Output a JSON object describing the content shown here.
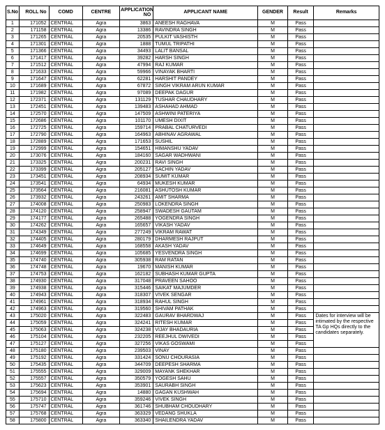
{
  "headers": {
    "sno": "S.No",
    "roll": "ROLL No",
    "comd": "COMD",
    "centre": "CENTRE",
    "app": "APPLICATION NO",
    "name": "APPLICANT NAME",
    "gender": "GENDER",
    "result": "Result",
    "remarks": "Remarks"
  },
  "remark_text": "Dates for interview will be intimated by the respective TA Gp HQs directly to the candidates separately.",
  "rows": [
    {
      "sno": 1,
      "roll": 171052,
      "comd": "CENTRAL",
      "centre": "Agra",
      "app": 3863,
      "name": "ANEESH RAGHAVA",
      "g": "M",
      "r": "Pass"
    },
    {
      "sno": 2,
      "roll": 171158,
      "comd": "CENTRAL",
      "centre": "Agra",
      "app": 13386,
      "name": "RAVINDRA SINGH",
      "g": "M",
      "r": "Pass"
    },
    {
      "sno": 3,
      "roll": 171265,
      "comd": "CENTRAL",
      "centre": "Agra",
      "app": 20535,
      "name": "PULKIT VASHISTH",
      "g": "M",
      "r": "Pass"
    },
    {
      "sno": 4,
      "roll": 171301,
      "comd": "CENTRAL",
      "centre": "Agra",
      "app": 1888,
      "name": "TUMUL TRIPATHI",
      "g": "M",
      "r": "Pass"
    },
    {
      "sno": 5,
      "roll": 171366,
      "comd": "CENTRAL",
      "centre": "Agra",
      "app": 34493,
      "name": "LALIT BANSAL",
      "g": "M",
      "r": "Pass"
    },
    {
      "sno": 6,
      "roll": 171417,
      "comd": "CENTRAL",
      "centre": "Agra",
      "app": 39282,
      "name": "HARSH SINGH",
      "g": "M",
      "r": "Pass"
    },
    {
      "sno": 7,
      "roll": 171512,
      "comd": "CENTRAL",
      "centre": "Agra",
      "app": 47994,
      "name": "RAJ KUMAR",
      "g": "M",
      "r": "Pass"
    },
    {
      "sno": 8,
      "roll": 171633,
      "comd": "CENTRAL",
      "centre": "Agra",
      "app": 59966,
      "name": "VINAYAK BHARTI",
      "g": "M",
      "r": "Pass"
    },
    {
      "sno": 9,
      "roll": 171647,
      "comd": "CENTRAL",
      "centre": "Agra",
      "app": 62281,
      "name": "HARSHIT PANDEY",
      "g": "M",
      "r": "Pass"
    },
    {
      "sno": 10,
      "roll": 171689,
      "comd": "CENTRAL",
      "centre": "Agra",
      "app": 67872,
      "name": "SINGH VIKRAM ARUN KUMAR",
      "g": "M",
      "r": "Pass"
    },
    {
      "sno": 11,
      "roll": 171982,
      "comd": "CENTRAL",
      "centre": "Agra",
      "app": 97089,
      "name": "DEEPAK DAGUR",
      "g": "M",
      "r": "Pass"
    },
    {
      "sno": 12,
      "roll": 172371,
      "comd": "CENTRAL",
      "centre": "Agra",
      "app": 131129,
      "name": "TUSHAR CHAUDHARY",
      "g": "M",
      "r": "Pass"
    },
    {
      "sno": 13,
      "roll": 172451,
      "comd": "CENTRAL",
      "centre": "Agra",
      "app": 139483,
      "name": "ASHAHAD AHMAD",
      "g": "M",
      "r": "Pass"
    },
    {
      "sno": 14,
      "roll": 172570,
      "comd": "CENTRAL",
      "centre": "Agra",
      "app": 147509,
      "name": "ASHWINI PATERIYA",
      "g": "M",
      "r": "Pass"
    },
    {
      "sno": 15,
      "roll": 172686,
      "comd": "CENTRAL",
      "centre": "Agra",
      "app": 101170,
      "name": "UMESH DIXIT",
      "g": "M",
      "r": "Pass"
    },
    {
      "sno": 16,
      "roll": 172725,
      "comd": "CENTRAL",
      "centre": "Agra",
      "app": 159714,
      "name": "PRABAL CHATURVEDI",
      "g": "M",
      "r": "Pass"
    },
    {
      "sno": 17,
      "roll": 172790,
      "comd": "CENTRAL",
      "centre": "Agra",
      "app": 164963,
      "name": "ABHINAV AGRAWAL",
      "g": "M",
      "r": "Pass"
    },
    {
      "sno": 18,
      "roll": 172889,
      "comd": "CENTRAL",
      "centre": "Agra",
      "app": 171653,
      "name": "SUSHIL",
      "g": "M",
      "r": "Pass"
    },
    {
      "sno": 19,
      "roll": 172999,
      "comd": "CENTRAL",
      "centre": "Agra",
      "app": 154651,
      "name": "HIMANSHU YADAV",
      "g": "M",
      "r": "Pass"
    },
    {
      "sno": 20,
      "roll": 173076,
      "comd": "CENTRAL",
      "centre": "Agra",
      "app": 184160,
      "name": "SAGAR WADHWANI",
      "g": "M",
      "r": "Pass"
    },
    {
      "sno": 21,
      "roll": 173325,
      "comd": "CENTRAL",
      "centre": "Agra",
      "app": 200231,
      "name": "RAVI SINGH",
      "g": "M",
      "r": "Pass"
    },
    {
      "sno": 22,
      "roll": 173399,
      "comd": "CENTRAL",
      "centre": "Agra",
      "app": 205127,
      "name": "SACHIN YADAV",
      "g": "M",
      "r": "Pass"
    },
    {
      "sno": 23,
      "roll": 173451,
      "comd": "CENTRAL",
      "centre": "Agra",
      "app": 208934,
      "name": "SUMIT KUMAR",
      "g": "M",
      "r": "Pass"
    },
    {
      "sno": 24,
      "roll": 173541,
      "comd": "CENTRAL",
      "centre": "Agra",
      "app": 64934,
      "name": "MUKESH KUMAR",
      "g": "M",
      "r": "Pass"
    },
    {
      "sno": 25,
      "roll": 173564,
      "comd": "CENTRAL",
      "centre": "Agra",
      "app": 216081,
      "name": "ASHUTOSH KUMAR",
      "g": "M",
      "r": "Pass"
    },
    {
      "sno": 26,
      "roll": 173932,
      "comd": "CENTRAL",
      "centre": "Agra",
      "app": 243261,
      "name": "AMIT SHARMA",
      "g": "M",
      "r": "Pass"
    },
    {
      "sno": 27,
      "roll": 174008,
      "comd": "CENTRAL",
      "centre": "Agra",
      "app": 250983,
      "name": "LOKENDRA SINGH",
      "g": "M",
      "r": "Pass"
    },
    {
      "sno": 28,
      "roll": 174120,
      "comd": "CENTRAL",
      "centre": "Agra",
      "app": 258947,
      "name": "SWADESH GAUTAM",
      "g": "M",
      "r": "Pass"
    },
    {
      "sno": 29,
      "roll": 174177,
      "comd": "CENTRAL",
      "centre": "Agra",
      "app": 265488,
      "name": "YOGENDRA SINGH",
      "g": "M",
      "r": "Pass"
    },
    {
      "sno": 30,
      "roll": 174262,
      "comd": "CENTRAL",
      "centre": "Agra",
      "app": 165657,
      "name": "VIKASH YADAV",
      "g": "M",
      "r": "Pass"
    },
    {
      "sno": 31,
      "roll": 174349,
      "comd": "CENTRAL",
      "centre": "Agra",
      "app": 277249,
      "name": "VIKRAM RAWAT",
      "g": "M",
      "r": "Pass"
    },
    {
      "sno": 32,
      "roll": 174405,
      "comd": "CENTRAL",
      "centre": "Agra",
      "app": 280179,
      "name": "DHARMESH RAJPUT",
      "g": "M",
      "r": "Pass"
    },
    {
      "sno": 33,
      "roll": 174649,
      "comd": "CENTRAL",
      "centre": "Agra",
      "app": 168558,
      "name": "AKASH YADAV",
      "g": "M",
      "r": "Pass"
    },
    {
      "sno": 34,
      "roll": 174699,
      "comd": "CENTRAL",
      "centre": "Agra",
      "app": 105685,
      "name": "YESVENDRA SINGH",
      "g": "M",
      "r": "Pass"
    },
    {
      "sno": 35,
      "roll": 174740,
      "comd": "CENTRAL",
      "centre": "Agra",
      "app": 305938,
      "name": "RAM RATAN",
      "g": "M",
      "r": "Pass"
    },
    {
      "sno": 36,
      "roll": 174748,
      "comd": "CENTRAL",
      "centre": "Agra",
      "app": 19670,
      "name": "MANISH KUMAR",
      "g": "M",
      "r": "Pass"
    },
    {
      "sno": 37,
      "roll": 174753,
      "comd": "CENTRAL",
      "centre": "Agra",
      "app": 162182,
      "name": "SUBHASH KUMAR GUPTA",
      "g": "M",
      "r": "Pass"
    },
    {
      "sno": 38,
      "roll": 174930,
      "comd": "CENTRAL",
      "centre": "Agra",
      "app": 317048,
      "name": "PRAVEEN SAHOO",
      "g": "M",
      "r": "Pass"
    },
    {
      "sno": 39,
      "roll": 174938,
      "comd": "CENTRAL",
      "centre": "Agra",
      "app": 315446,
      "name": "SAIKAT MAJUMDER",
      "g": "M",
      "r": "Pass"
    },
    {
      "sno": 40,
      "roll": 174943,
      "comd": "CENTRAL",
      "centre": "Agra",
      "app": 318307,
      "name": "VIVEK SENGAR",
      "g": "M",
      "r": "Pass"
    },
    {
      "sno": 41,
      "roll": 174961,
      "comd": "CENTRAL",
      "centre": "Agra",
      "app": 318934,
      "name": "RAHUL SINGH",
      "g": "M",
      "r": "Pass"
    },
    {
      "sno": 42,
      "roll": 174963,
      "comd": "CENTRAL",
      "centre": "Agra",
      "app": 319560,
      "name": "SHIVAM PATHAK",
      "g": "M",
      "r": "Pass"
    },
    {
      "sno": 43,
      "roll": 175020,
      "comd": "CENTRAL",
      "centre": "Agra",
      "app": 322483,
      "name": "GAURAV BHARDWAJ",
      "g": "M",
      "r": "Pass"
    },
    {
      "sno": 44,
      "roll": 175059,
      "comd": "CENTRAL",
      "centre": "Agra",
      "app": 324241,
      "name": "RITESH KUMAR",
      "g": "M",
      "r": "Pass"
    },
    {
      "sno": 45,
      "roll": 175063,
      "comd": "CENTRAL",
      "centre": "Agra",
      "app": 324238,
      "name": "VIJAY BHADAURIA",
      "g": "M",
      "r": "Pass"
    },
    {
      "sno": 46,
      "roll": 175104,
      "comd": "CENTRAL",
      "centre": "Agra",
      "app": 232205,
      "name": "REEJHUL DWIVEDI",
      "g": "M",
      "r": "Pass"
    },
    {
      "sno": 47,
      "roll": 175127,
      "comd": "CENTRAL",
      "centre": "Agra",
      "app": 327256,
      "name": "VIKAS GOSWAMI",
      "g": "M",
      "r": "Pass"
    },
    {
      "sno": 48,
      "roll": 175180,
      "comd": "CENTRAL",
      "centre": "Agra",
      "app": 239503,
      "name": "VINAY",
      "g": "M",
      "r": "Pass"
    },
    {
      "sno": 49,
      "roll": 175192,
      "comd": "CENTRAL",
      "centre": "Agra",
      "app": 331424,
      "name": "SONU CHOURASIA",
      "g": "M",
      "r": "Pass"
    },
    {
      "sno": 50,
      "roll": 175435,
      "comd": "CENTRAL",
      "centre": "Agra",
      "app": 344709,
      "name": "DEEPESH SHARMA",
      "g": "M",
      "r": "Pass"
    },
    {
      "sno": 51,
      "roll": 175555,
      "comd": "CENTRAL",
      "centre": "Agra",
      "app": 329009,
      "name": "MAYANK SHEKHAR",
      "g": "M",
      "r": "Pass"
    },
    {
      "sno": 52,
      "roll": 175557,
      "comd": "CENTRAL",
      "centre": "Agra",
      "app": 350579,
      "name": "YOGESH SAHU",
      "g": "M",
      "r": "Pass"
    },
    {
      "sno": 53,
      "roll": 175623,
      "comd": "CENTRAL",
      "centre": "Agra",
      "app": 353901,
      "name": "SAURABH SINGH",
      "g": "M",
      "r": "Pass"
    },
    {
      "sno": 54,
      "roll": 175694,
      "comd": "CENTRAL",
      "centre": "Agra",
      "app": 14880,
      "name": "GAGAN KUSHWAH",
      "g": "M",
      "r": "Pass"
    },
    {
      "sno": 55,
      "roll": 175710,
      "comd": "CENTRAL",
      "centre": "Agra",
      "app": 359246,
      "name": "VIVEK SINGH",
      "g": "M",
      "r": "Pass"
    },
    {
      "sno": 56,
      "roll": 175747,
      "comd": "CENTRAL",
      "centre": "Agra",
      "app": 361746,
      "name": "SHUBHAM CHOUDHARY",
      "g": "M",
      "r": "Pass"
    },
    {
      "sno": 57,
      "roll": 175768,
      "comd": "CENTRAL",
      "centre": "Agra",
      "app": 363329,
      "name": "VEDANG SHUKLA",
      "g": "M",
      "r": "Pass"
    },
    {
      "sno": 58,
      "roll": 175800,
      "comd": "CENTRAL",
      "centre": "Agra",
      "app": 363340,
      "name": "SHAILENDRA YADAV",
      "g": "M",
      "r": "Pass"
    }
  ]
}
